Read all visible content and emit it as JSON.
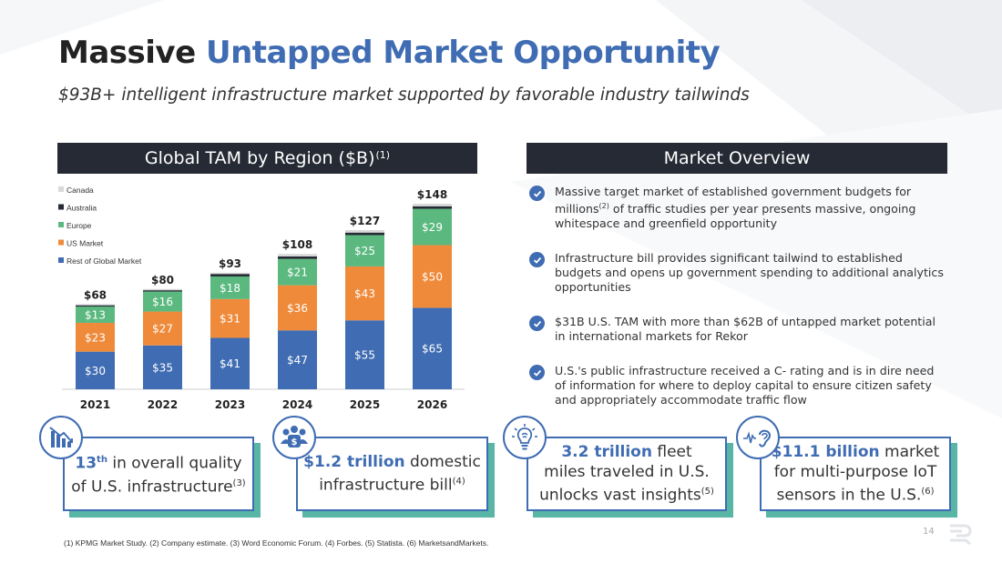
{
  "slide": {
    "title_part1": "Massive ",
    "title_part2": "Untapped Market Opportunity",
    "subtitle": "$93B+ intelligent infrastructure market supported by favorable industry tailwinds",
    "page_number": "14",
    "footnote": "(1) KPMG Market Study. (2) Company estimate. (3) Word Economic Forum. (4) Forbes. (5) Statista. (6) MarketsandMarkets."
  },
  "chart_header": {
    "label": "Global TAM by Region ($B)",
    "sup": "(1)"
  },
  "overview_header": {
    "label": "Market Overview"
  },
  "overview": {
    "items": [
      {
        "pre": "Massive target market of established government budgets for millions",
        "sup": "(2)",
        "post": " of traffic studies per year presents massive, ongoing whitespace and greenfield opportunity"
      },
      {
        "pre": "Infrastructure bill provides significant tailwind to established budgets and opens up government spending to additional analytics opportunities",
        "sup": "",
        "post": ""
      },
      {
        "pre": "$31B U.S. TAM with more than $62B of untapped market potential in international markets for Rekor",
        "sup": "",
        "post": ""
      },
      {
        "pre": "U.S.'s public infrastructure received a C- rating and is in dire need of information for where to deploy capital to ensure citizen safety and appropriately accommodate traffic flow",
        "sup": "",
        "post": ""
      }
    ]
  },
  "stats": [
    {
      "hl": "13",
      "hl_sup": "th",
      "line1_rest": " in overall quality",
      "line2": "of U.S. infrastructure",
      "sup": "(3)",
      "icon": "declining-chart-icon"
    },
    {
      "hl": "$1.2 trillion",
      "hl_sup": "",
      "line1_rest": " domestic",
      "line2": "infrastructure bill",
      "sup": "(4)",
      "icon": "people-money-icon"
    },
    {
      "hl": "3.2 trillion",
      "hl_sup": "",
      "line1_rest": " fleet",
      "line2": "miles traveled in U.S.",
      "line3": "unlocks vast insights",
      "sup": "(5)",
      "icon": "lightbulb-brain-icon"
    },
    {
      "hl": "$11.1 billion",
      "hl_sup": "",
      "line1_rest": " market",
      "line2": "for multi-purpose IoT",
      "line3": "sensors in the U.S.",
      "sup": "(6)",
      "icon": "ear-sensor-icon"
    }
  ],
  "colors": {
    "accent": "#3f6cb2",
    "header_bg": "#262a35",
    "teal_shadow": "#59b5a5"
  },
  "chart_data": {
    "type": "bar",
    "stacked": true,
    "categories": [
      "2021",
      "2022",
      "2023",
      "2024",
      "2025",
      "2026"
    ],
    "totals": [
      "$68",
      "$80",
      "$93",
      "$108",
      "$127",
      "$148"
    ],
    "total_values": [
      68,
      80,
      93,
      108,
      127,
      148
    ],
    "series": [
      {
        "name": "Rest of Global Market",
        "color": "#3f6cb2",
        "values": [
          30,
          35,
          41,
          47,
          55,
          65
        ],
        "labels": [
          "$30",
          "$35",
          "$41",
          "$47",
          "$55",
          "$65"
        ]
      },
      {
        "name": "US Market",
        "color": "#ef8a3a",
        "values": [
          23,
          27,
          31,
          36,
          43,
          50
        ],
        "labels": [
          "$23",
          "$27",
          "$31",
          "$36",
          "$43",
          "$50"
        ]
      },
      {
        "name": "Europe",
        "color": "#5bb97f",
        "values": [
          13,
          16,
          18,
          21,
          25,
          29
        ],
        "labels": [
          "$13",
          "$16",
          "$18",
          "$21",
          "$25",
          "$29"
        ]
      },
      {
        "name": "Australia",
        "color": "#262a35",
        "values": [
          1,
          1,
          2,
          2,
          2,
          2
        ],
        "labels": []
      },
      {
        "name": "Canada",
        "color": "#d9d9d9",
        "values": [
          1,
          1,
          1,
          2,
          2,
          2
        ],
        "labels": []
      }
    ],
    "legend_order": [
      "Canada",
      "Australia",
      "Europe",
      "US Market",
      "Rest of Global Market"
    ],
    "legend_position": "top-left",
    "ylim": [
      0,
      160
    ],
    "grid": false
  }
}
